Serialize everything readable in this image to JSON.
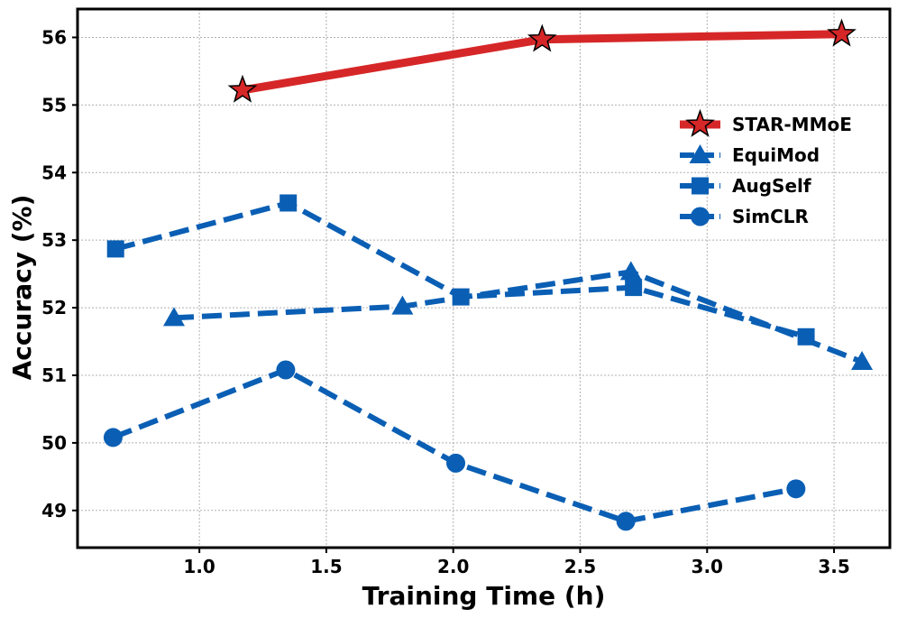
{
  "chart_data": {
    "type": "line",
    "title": "",
    "xlabel": "Training Time (h)",
    "ylabel": "Accuracy (%)",
    "xlim": [
      0.52,
      3.72
    ],
    "ylim": [
      48.45,
      56.42
    ],
    "xticks": [
      "1.0",
      "1.5",
      "2.0",
      "2.5",
      "3.0",
      "3.5"
    ],
    "yticks": [
      "49",
      "50",
      "51",
      "52",
      "53",
      "54",
      "55",
      "56"
    ],
    "grid": true,
    "legend_position": "right",
    "series": [
      {
        "name": "STAR-MMoE",
        "color": "#d62728",
        "marker": "star",
        "linestyle": "solid",
        "x": [
          1.17,
          2.35,
          3.53
        ],
        "y": [
          55.22,
          55.97,
          56.05
        ]
      },
      {
        "name": "EquiMod",
        "color": "#0a5fb4",
        "marker": "triangle",
        "linestyle": "dashed",
        "x": [
          0.9,
          1.8,
          2.7,
          3.61
        ],
        "y": [
          51.85,
          52.02,
          52.53,
          51.2
        ]
      },
      {
        "name": "AugSelf",
        "color": "#0a5fb4",
        "marker": "square",
        "linestyle": "dashed",
        "x": [
          0.67,
          1.35,
          2.03,
          2.71,
          3.39
        ],
        "y": [
          52.87,
          53.55,
          52.16,
          52.3,
          51.57
        ]
      },
      {
        "name": "SimCLR",
        "color": "#0a5fb4",
        "marker": "circle",
        "linestyle": "dashed",
        "x": [
          0.66,
          1.34,
          2.01,
          2.68,
          3.35
        ],
        "y": [
          50.08,
          51.08,
          49.7,
          48.84,
          49.32
        ]
      }
    ]
  }
}
